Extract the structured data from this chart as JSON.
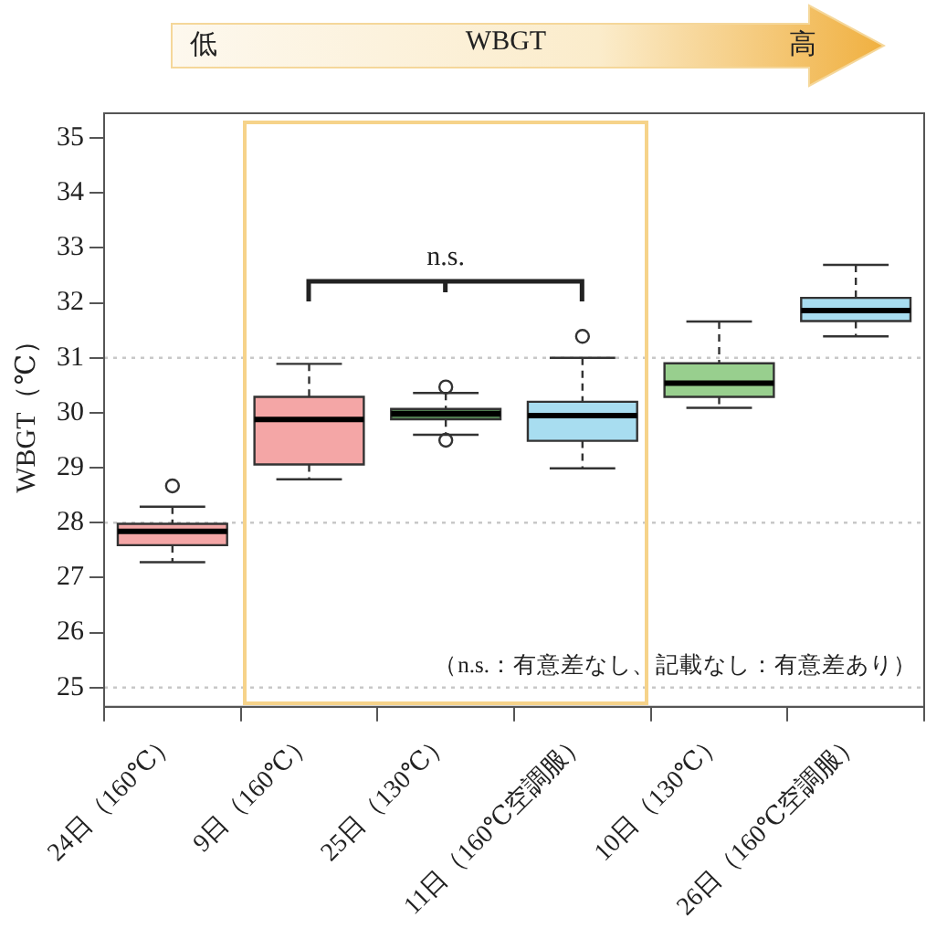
{
  "chart_data": {
    "type": "box",
    "ylabel": "WBGT（℃）",
    "categories": [
      "24日（160℃）",
      "9日（160℃）",
      "25日（130℃）",
      "11日（160℃空調服）",
      "10日（130℃）",
      "26日（160℃空調服）"
    ],
    "colors": [
      "#f4a6a6",
      "#f4a6a6",
      "#4f7a4f",
      "#a8ddf0",
      "#98cf8e",
      "#a8ddf0"
    ],
    "boxes": [
      {
        "low": 27.28,
        "q1": 27.59,
        "median": 27.84,
        "q3": 27.98,
        "high": 28.29,
        "outliers": [
          28.67
        ]
      },
      {
        "low": 28.79,
        "q1": 29.06,
        "median": 29.88,
        "q3": 30.29,
        "high": 30.89
      },
      {
        "low": 29.6,
        "q1": 29.88,
        "median": 29.98,
        "q3": 30.07,
        "high": 30.36,
        "outliers": [
          30.47,
          29.5
        ]
      },
      {
        "low": 28.99,
        "q1": 29.49,
        "median": 29.95,
        "q3": 30.2,
        "high": 31.0,
        "outliers": [
          31.39
        ]
      },
      {
        "low": 30.09,
        "q1": 30.29,
        "median": 30.54,
        "q3": 30.9,
        "high": 31.66
      },
      {
        "low": 31.39,
        "q1": 31.67,
        "median": 31.86,
        "q3": 32.09,
        "high": 32.69
      }
    ],
    "ylim": [
      24.65,
      35.45
    ],
    "yticks": [
      25,
      26,
      27,
      28,
      29,
      30,
      31,
      32,
      33,
      34,
      35
    ],
    "ref_lines": [
      {
        "axis": "y",
        "value": 25,
        "color": "#c8c8c8",
        "line_style": "dotted"
      },
      {
        "axis": "y",
        "value": 28,
        "color": "#c8c8c8",
        "line_style": "dotted"
      },
      {
        "axis": "y",
        "value": 31,
        "color": "#c8c8c8",
        "line_style": "dotted"
      }
    ],
    "annotations": [
      "低",
      "WBGT",
      "高",
      "n.s.",
      "（n.s.：有意差なし、記載なし：有意差あり）"
    ]
  }
}
